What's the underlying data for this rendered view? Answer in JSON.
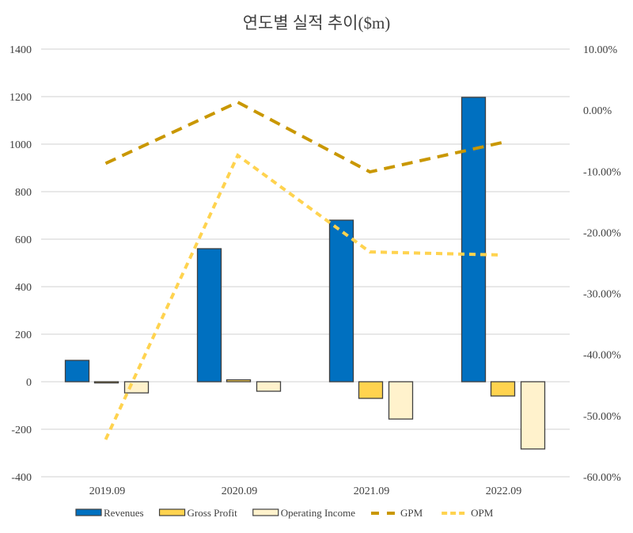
{
  "chart_data": {
    "type": "bar+line",
    "title": "연도별 실적 추이($m)",
    "categories": [
      "2019.09",
      "2020.09",
      "2021.09",
      "2022.09"
    ],
    "y_left": {
      "range": [
        -400,
        1400
      ],
      "ticks": [
        "-400",
        "-200",
        "0",
        "200",
        "400",
        "600",
        "800",
        "1000",
        "1200",
        "1400"
      ]
    },
    "y_right": {
      "range": [
        -60,
        10
      ],
      "ticks": [
        "-60.00%",
        "-50.00%",
        "-40.00%",
        "-30.00%",
        "-20.00%",
        "-10.00%",
        "0.00%",
        "10.00%"
      ]
    },
    "grid": true,
    "legend_position": "bottom",
    "bar_series": [
      {
        "name": "Revenues",
        "color": "#0070C0",
        "values": [
          90,
          560,
          680,
          1197
        ]
      },
      {
        "name": "Gross Profit",
        "color": "#FFD34F",
        "values": [
          -5,
          8,
          -70,
          -60
        ]
      },
      {
        "name": "Operating Income",
        "color": "#FFF2CC",
        "values": [
          -47,
          -40,
          -157,
          -283
        ]
      }
    ],
    "line_series": [
      {
        "name": "GPM",
        "color": "#C99700",
        "axis": "right",
        "values": [
          -8.7,
          1.3,
          -10.1,
          -5.3
        ]
      },
      {
        "name": "OPM",
        "color": "#FFD34F",
        "axis": "right",
        "values": [
          -53.9,
          -7.4,
          -23.2,
          -23.7
        ]
      }
    ]
  }
}
